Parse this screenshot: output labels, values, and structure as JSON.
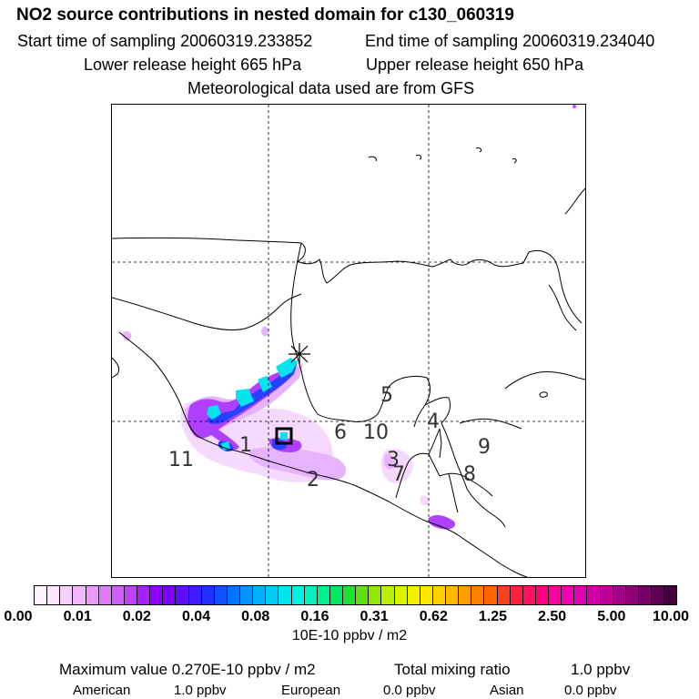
{
  "header": {
    "title": "NO2 source contributions in nested domain for c130_060319",
    "start_time_label": "Start time of sampling 20060319.233852",
    "end_time_label": "End time of sampling 20060319.234040",
    "lower_height_label": "Lower release height  665 hPa",
    "upper_height_label": "Upper release height  650 hPa",
    "met_label": "Meteorological data used are from GFS"
  },
  "map": {
    "region_labels": [
      "5",
      "6",
      "10",
      "4",
      "9",
      "11",
      "1",
      "3",
      "7",
      "8",
      "2"
    ],
    "colors": {
      "coast": "#000000",
      "grid": "#000000",
      "cyan": "#00e5f0",
      "blue": "#1a3cff",
      "violet": "#9b00ff",
      "magenta": "#cc44ff",
      "light": "#e6b3ff",
      "pale": "#f5d9ff"
    }
  },
  "colorbar": {
    "tick_labels": [
      "0.00",
      "0.01",
      "0.02",
      "0.04",
      "0.08",
      "0.16",
      "0.31",
      "0.62",
      "1.25",
      "2.50",
      "5.00",
      "10.00"
    ],
    "colors": [
      "#fff5ff",
      "#fce6ff",
      "#f8d0ff",
      "#f2b8ff",
      "#ea99ff",
      "#e07aff",
      "#d25cff",
      "#c040ff",
      "#a81eff",
      "#9000ff",
      "#7a00ff",
      "#5c10ff",
      "#3c1cff",
      "#2030ff",
      "#1050ff",
      "#0074ff",
      "#0094ff",
      "#00b0ff",
      "#00cdf5",
      "#00e5f0",
      "#00f2e0",
      "#00f2c0",
      "#00f090",
      "#00e860",
      "#20e030",
      "#60e010",
      "#90e800",
      "#b8f000",
      "#d8f400",
      "#f0f000",
      "#ffe800",
      "#ffd000",
      "#ffb800",
      "#ff9c00",
      "#ff8000",
      "#ff6400",
      "#ff4020",
      "#ff2040",
      "#ff1060",
      "#ff0080",
      "#ff00a0",
      "#f000b0",
      "#e000b4",
      "#d000a8",
      "#bc0098",
      "#a40088",
      "#8c0078",
      "#740066",
      "#5c0052",
      "#44003c"
    ],
    "units_label": "10E-10 ppbv / m2"
  },
  "summary": {
    "max_value_label": "Maximum value  0.270E-10 ppbv / m2",
    "total_label": "Total mixing ratio",
    "total_value": "1.0 ppbv",
    "american_label": "American",
    "american_value": "1.0 ppbv",
    "european_label": "European",
    "european_value": "0.0 ppbv",
    "asian_label": "Asian",
    "asian_value": "0.0 ppbv"
  }
}
